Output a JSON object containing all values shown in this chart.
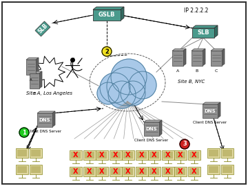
{
  "bg_color": "#ffffff",
  "border_color": "#000000",
  "gslb_color": "#4a9a8c",
  "cloud_color": "#a8c8e8",
  "cloud_outline": "#5080a0",
  "server_color": "#999999",
  "site_a_label": "Site A, Los Angeles",
  "site_b_label": "Site B, NYC",
  "ip_label": "IP 2.2.2.2",
  "figw": 3.6,
  "figh": 2.71,
  "dpi": 100
}
